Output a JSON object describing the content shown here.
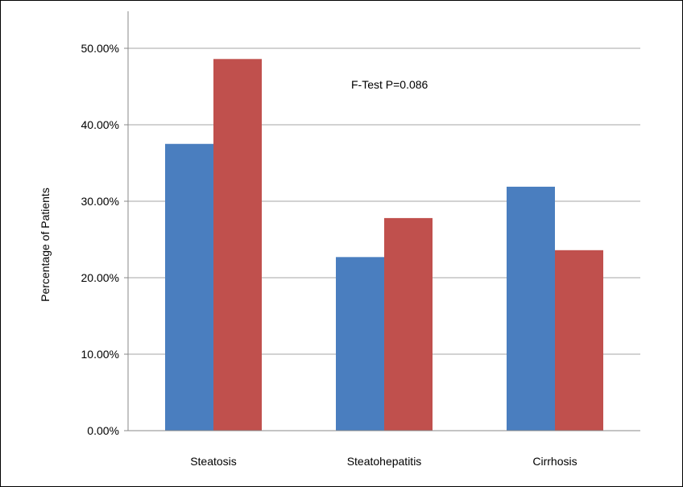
{
  "chart_data": {
    "type": "bar",
    "categories": [
      "Steatosis",
      "Steatohepatitis",
      "Cirrhosis"
    ],
    "series": [
      {
        "color": "#4a7ebf",
        "values": [
          37.5,
          22.7,
          31.9
        ]
      },
      {
        "color": "#c0504d",
        "values": [
          48.6,
          27.8,
          23.6
        ]
      }
    ],
    "ylabel": "Percentage of Patients",
    "ylim": [
      0,
      50
    ],
    "yticks": [
      "0.00%",
      "10.00%",
      "20.00%",
      "30.00%",
      "40.00%",
      "50.00%"
    ],
    "annotation": "F-Test P=0.086",
    "grid": true,
    "legend": "none"
  }
}
